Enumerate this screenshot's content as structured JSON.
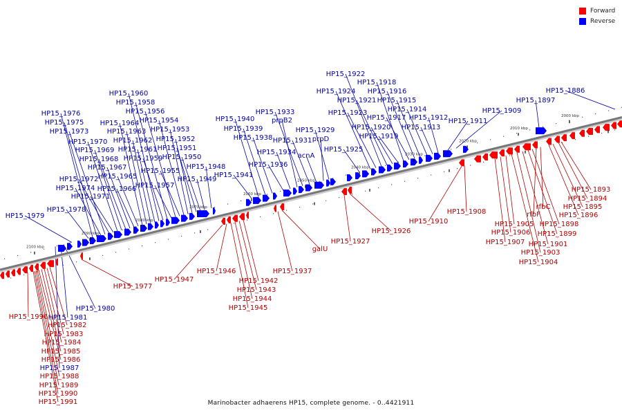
{
  "caption": "Marinobacter adhaerens HP15, complete genome. - 0..4421911",
  "legend": [
    {
      "label": "Forward",
      "color": "#ff0000"
    },
    {
      "label": "Reverse",
      "color": "#0000ff"
    }
  ],
  "colors": {
    "forward": "#ff0000",
    "reverse": "#0000ff",
    "axis": "#808080",
    "label_forward": "#b30000",
    "label_reverse": "#0000aa"
  },
  "ticks": [
    "2000 kbp",
    "2010 kbp",
    "2020 kbp",
    "2030 kbp",
    "2040 kbp",
    "2050 kbp",
    "2060 kbp",
    "2070 kbp",
    "2080 kbp",
    "2090 kbp",
    "2100 kbp"
  ],
  "reverse_labels": [
    "HP15_1886",
    "HP15_1897",
    "HP15_1909",
    "HP15_1911",
    "HP15_1912",
    "HP15_1913",
    "HP15_1914",
    "HP15_1915",
    "HP15_1916",
    "HP15_1917",
    "HP15_1918",
    "HP15_1919",
    "HP15_1920",
    "HP15_1921",
    "HP15_1922",
    "HP15_1923",
    "HP15_1924",
    "HP15_1925",
    "HP15_1929",
    "prpD",
    "acnA",
    "HP15_1931",
    "HP15_1933",
    "prpB2",
    "HP15_1934",
    "HP15_1936",
    "HP15_1938",
    "HP15_1939",
    "HP15_1940",
    "HP15_1941",
    "HP15_1948",
    "HP15_1949",
    "HP15_1950",
    "HP15_1951",
    "HP15_1952",
    "HP15_1953",
    "HP15_1954",
    "HP15_1955",
    "HP15_1956",
    "HP15_1957",
    "HP15_1958",
    "HP15_1959",
    "HP15_1960",
    "HP15_1961",
    "HP15_1962",
    "HP15_1963",
    "HP15_1964",
    "HP15_1965",
    "HP15_1966",
    "HP15_1967",
    "HP15_1968",
    "HP15_1969",
    "HP15_1970",
    "HP15_1971",
    "HP15_1972",
    "HP15_1973",
    "HP15_1974",
    "HP15_1975",
    "HP15_1976",
    "HP15_1978",
    "HP15_1979",
    "HP15_1980",
    "HP15_1981",
    "HP15_1987"
  ],
  "forward_labels": [
    "HP15_1893",
    "HP15_1894",
    "HP15_1895",
    "HP15_1896",
    "rfbC",
    "rfbF",
    "HP15_1898",
    "HP15_1899",
    "HP15_1901",
    "HP15_1903",
    "HP15_1904",
    "HP15_1905",
    "HP15_1906",
    "HP15_1907",
    "HP15_1908",
    "HP15_1910",
    "HP15_1926",
    "HP15_1927",
    "galU",
    "HP15_1937",
    "HP15_1942",
    "HP15_1943",
    "HP15_1944",
    "HP15_1945",
    "HP15_1946",
    "HP15_1947",
    "HP15_1977",
    "HP15_1996",
    "HP15_1982",
    "HP15_1983",
    "HP15_1984",
    "HP15_1985",
    "HP15_1986",
    "HP15_1988",
    "HP15_1989",
    "HP15_1990",
    "HP15_1991"
  ]
}
